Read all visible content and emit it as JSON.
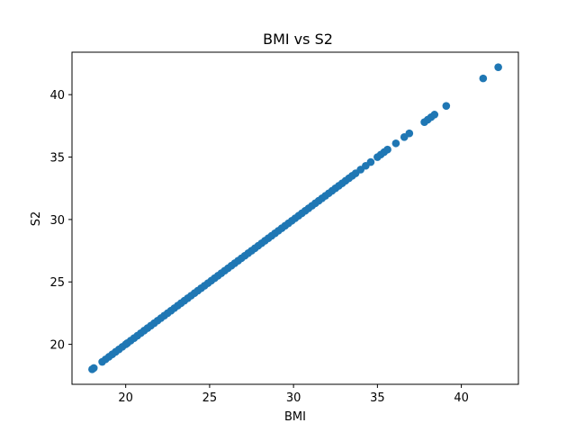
{
  "chart_data": {
    "type": "scatter",
    "title": "BMI vs S2",
    "xlabel": "BMI",
    "ylabel": "S2",
    "xlim": [
      16.8,
      43.4
    ],
    "ylim": [
      16.8,
      43.4
    ],
    "xticks": [
      20,
      25,
      30,
      35,
      40
    ],
    "yticks": [
      20,
      25,
      30,
      35,
      40
    ],
    "grid": false,
    "marker_color": "#1f77b4",
    "series": [
      {
        "x": [
          18.0,
          18.1,
          18.6,
          18.8,
          19.0,
          19.2,
          19.4,
          19.6,
          19.8,
          20.0,
          20.1,
          20.3,
          20.5,
          20.7,
          20.9,
          21.1,
          21.3,
          21.5,
          21.7,
          21.9,
          22.1,
          22.3,
          22.5,
          22.7,
          22.9,
          23.1,
          23.3,
          23.5,
          23.7,
          23.9,
          24.1,
          24.3,
          24.5,
          24.7,
          24.9,
          25.1,
          25.3,
          25.5,
          25.7,
          25.9,
          26.1,
          26.3,
          26.5,
          26.7,
          26.9,
          27.1,
          27.3,
          27.5,
          27.7,
          27.9,
          28.1,
          28.3,
          28.5,
          28.7,
          28.9,
          29.1,
          29.3,
          29.5,
          29.7,
          29.9,
          30.1,
          30.3,
          30.5,
          30.7,
          30.9,
          31.1,
          31.3,
          31.5,
          31.7,
          31.9,
          32.1,
          32.3,
          32.5,
          32.7,
          32.9,
          33.1,
          33.3,
          33.5,
          33.7,
          34.0,
          34.3,
          34.6,
          35.0,
          35.2,
          35.4,
          35.6,
          36.1,
          36.6,
          36.9,
          37.8,
          38.0,
          38.2,
          38.4,
          39.1,
          41.3,
          42.2
        ],
        "y": [
          18.0,
          18.1,
          18.6,
          18.8,
          19.0,
          19.2,
          19.4,
          19.6,
          19.8,
          20.0,
          20.1,
          20.3,
          20.5,
          20.7,
          20.9,
          21.1,
          21.3,
          21.5,
          21.7,
          21.9,
          22.1,
          22.3,
          22.5,
          22.7,
          22.9,
          23.1,
          23.3,
          23.5,
          23.7,
          23.9,
          24.1,
          24.3,
          24.5,
          24.7,
          24.9,
          25.1,
          25.3,
          25.5,
          25.7,
          25.9,
          26.1,
          26.3,
          26.5,
          26.7,
          26.9,
          27.1,
          27.3,
          27.5,
          27.7,
          27.9,
          28.1,
          28.3,
          28.5,
          28.7,
          28.9,
          29.1,
          29.3,
          29.5,
          29.7,
          29.9,
          30.1,
          30.3,
          30.5,
          30.7,
          30.9,
          31.1,
          31.3,
          31.5,
          31.7,
          31.9,
          32.1,
          32.3,
          32.5,
          32.7,
          32.9,
          33.1,
          33.3,
          33.5,
          33.7,
          34.0,
          34.3,
          34.6,
          35.0,
          35.2,
          35.4,
          35.6,
          36.1,
          36.6,
          36.9,
          37.8,
          38.0,
          38.2,
          38.4,
          39.1,
          41.3,
          42.2
        ]
      }
    ]
  }
}
